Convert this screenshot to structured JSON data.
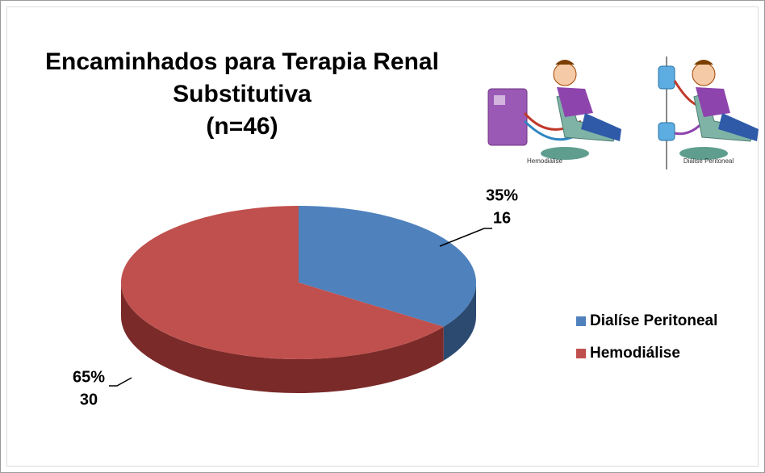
{
  "chart_data": {
    "type": "pie3d",
    "title": [
      "Encaminhados para Terapia Renal",
      "Substitutiva"
    ],
    "subtitle": "(n=46)",
    "categories": [
      "Dialíse Peritoneal",
      "Hemodiálise"
    ],
    "values": [
      16,
      30
    ],
    "percent_labels": [
      "35%",
      "65%"
    ],
    "colors": [
      "#4f81bd",
      "#c0504d"
    ],
    "side_colors": [
      "#2c4a70",
      "#7a2a28"
    ],
    "legend": "right",
    "illustrations": [
      {
        "caption": "Hemodiálise"
      },
      {
        "caption": "Diálise Peritoneal"
      }
    ]
  }
}
